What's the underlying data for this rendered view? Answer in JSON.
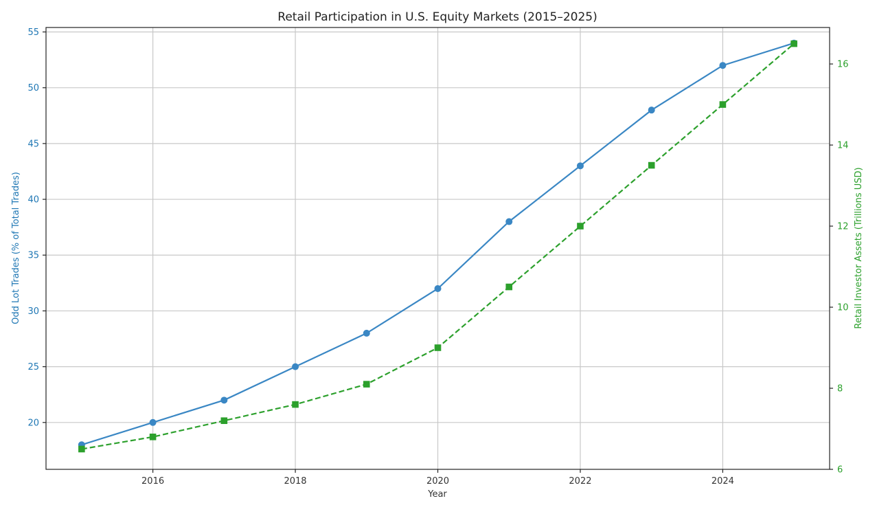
{
  "chart_data": {
    "type": "line",
    "title": "Retail Participation in U.S. Equity Markets (2015–2025)",
    "xlabel": "Year",
    "x": [
      2015,
      2016,
      2017,
      2018,
      2019,
      2020,
      2021,
      2022,
      2023,
      2024,
      2025
    ],
    "xlim": [
      2014.5,
      2025.5
    ],
    "xticks": [
      "2016",
      "2018",
      "2020",
      "2022",
      "2024"
    ],
    "grid": true,
    "left_axis": {
      "label": "Odd Lot Trades (% of Total Trades)",
      "ylim": [
        15.8,
        55.4
      ],
      "ticks": [
        "20",
        "25",
        "30",
        "35",
        "40",
        "45",
        "50",
        "55"
      ],
      "color": "#1f77b4"
    },
    "right_axis": {
      "label": "Retail Investor Assets (Trillions USD)",
      "ylim": [
        6.0,
        16.9
      ],
      "ticks": [
        "6",
        "8",
        "10",
        "12",
        "14",
        "16"
      ],
      "color": "#2ca02c"
    },
    "series": [
      {
        "name": "Odd Lot Trades (% of Total Trades)",
        "axis": "left",
        "style": "solid",
        "marker": "circle",
        "color": "#3a87c4",
        "values": [
          18,
          20,
          22,
          25,
          28,
          32,
          38,
          43,
          48,
          52,
          54
        ]
      },
      {
        "name": "Retail Investor Assets (Trillions USD)",
        "axis": "right",
        "style": "dashed",
        "marker": "square",
        "color": "#2ca02c",
        "values": [
          6.5,
          6.8,
          7.2,
          7.6,
          8.1,
          9.0,
          10.5,
          12.0,
          13.5,
          15.0,
          16.5
        ]
      }
    ]
  }
}
